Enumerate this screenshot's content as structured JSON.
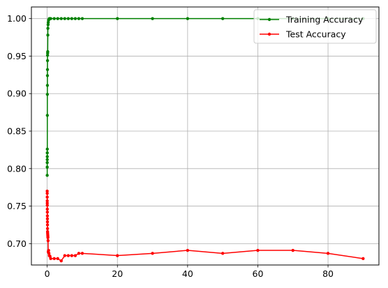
{
  "chart_data": {
    "type": "line",
    "title": "",
    "xlabel": "",
    "ylabel": "",
    "xlim": [
      -4.5,
      94.5
    ],
    "ylim": [
      0.6715,
      1.0155
    ],
    "xticks": [
      0,
      20,
      40,
      60,
      80
    ],
    "yticks": [
      0.7,
      0.75,
      0.8,
      0.85,
      0.9,
      0.95,
      1.0
    ],
    "grid": true,
    "legend": "top-right",
    "series": [
      {
        "name": "Training Accuracy",
        "color": "#008000",
        "x": [
          0.001,
          0.003,
          0.006,
          0.01,
          0.015,
          0.02,
          0.03,
          0.04,
          0.05,
          0.06,
          0.07,
          0.08,
          0.09,
          0.1,
          0.12,
          0.15,
          0.18,
          0.2,
          0.25,
          0.3,
          0.4,
          0.5,
          0.6,
          0.8,
          1,
          2,
          3,
          4,
          5,
          6,
          7,
          8,
          9,
          10,
          20,
          30,
          40,
          50,
          60,
          70,
          80,
          90
        ],
        "y": [
          0.791,
          0.802,
          0.808,
          0.812,
          0.816,
          0.821,
          0.826,
          0.871,
          0.899,
          0.911,
          0.924,
          0.932,
          0.944,
          0.951,
          0.954,
          0.956,
          0.978,
          0.987,
          0.992,
          0.995,
          0.998,
          0.999,
          1.0,
          1.0,
          1.0,
          1.0,
          1.0,
          1.0,
          1.0,
          1.0,
          1.0,
          1.0,
          1.0,
          1.0,
          1.0,
          1.0,
          1.0,
          1.0,
          1.0,
          1.0,
          1.0,
          1.0
        ]
      },
      {
        "name": "Test Accuracy",
        "color": "#ff0000",
        "x": [
          0.001,
          0.003,
          0.006,
          0.01,
          0.015,
          0.02,
          0.03,
          0.04,
          0.05,
          0.06,
          0.07,
          0.08,
          0.09,
          0.1,
          0.12,
          0.15,
          0.18,
          0.2,
          0.25,
          0.3,
          0.4,
          0.5,
          0.6,
          0.8,
          1,
          2,
          3,
          4,
          5,
          6,
          7,
          8,
          9,
          10,
          20,
          30,
          40,
          50,
          60,
          70,
          80,
          90
        ],
        "y": [
          0.77,
          0.767,
          0.762,
          0.757,
          0.754,
          0.751,
          0.746,
          0.742,
          0.737,
          0.733,
          0.729,
          0.725,
          0.72,
          0.716,
          0.714,
          0.712,
          0.71,
          0.708,
          0.704,
          0.689,
          0.691,
          0.687,
          0.684,
          0.683,
          0.68,
          0.68,
          0.68,
          0.677,
          0.684,
          0.684,
          0.684,
          0.684,
          0.687,
          0.687,
          0.684,
          0.687,
          0.691,
          0.687,
          0.691,
          0.691,
          0.687,
          0.68
        ]
      }
    ]
  }
}
